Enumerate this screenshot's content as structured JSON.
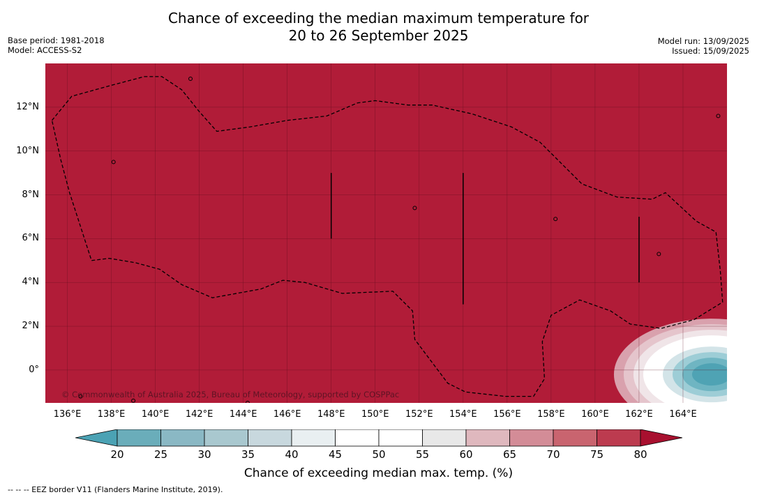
{
  "title": {
    "line1": "Chance of exceeding the median maximum temperature for",
    "line2": "20 to 26 September 2025"
  },
  "meta_left": [
    "Base period: 1981-2018",
    "Model: ACCESS-S2"
  ],
  "meta_right": [
    "Model run: 13/09/2025",
    "Issued: 15/09/2025"
  ],
  "map": {
    "background_color": "#b11c38",
    "lon_range": [
      135,
      166
    ],
    "lat_range": [
      -1.5,
      14
    ],
    "lat_ticks": [
      {
        "value": 12,
        "label": "12°N"
      },
      {
        "value": 10,
        "label": "10°N"
      },
      {
        "value": 8,
        "label": "8°N"
      },
      {
        "value": 6,
        "label": "6°N"
      },
      {
        "value": 4,
        "label": "4°N"
      },
      {
        "value": 2,
        "label": "2°N"
      },
      {
        "value": 0,
        "label": "0°"
      }
    ],
    "lon_ticks": [
      {
        "value": 136,
        "label": "136°E"
      },
      {
        "value": 138,
        "label": "138°E"
      },
      {
        "value": 140,
        "label": "140°E"
      },
      {
        "value": 142,
        "label": "142°E"
      },
      {
        "value": 144,
        "label": "144°E"
      },
      {
        "value": 146,
        "label": "146°E"
      },
      {
        "value": 148,
        "label": "148°E"
      },
      {
        "value": 150,
        "label": "150°E"
      },
      {
        "value": 152,
        "label": "152°E"
      },
      {
        "value": 154,
        "label": "154°E"
      },
      {
        "value": 156,
        "label": "156°E"
      },
      {
        "value": 158,
        "label": "158°E"
      },
      {
        "value": 160,
        "label": "160°E"
      },
      {
        "value": 162,
        "label": "162°E"
      },
      {
        "value": 164,
        "label": "164°E"
      }
    ],
    "grid": true,
    "eez_border": [
      [
        135.3,
        11.4
      ],
      [
        136.2,
        12.5
      ],
      [
        138,
        13
      ],
      [
        139.5,
        13.4
      ],
      [
        140.3,
        13.4
      ],
      [
        141.2,
        12.8
      ],
      [
        142,
        11.8
      ],
      [
        142.8,
        10.9
      ],
      [
        144.3,
        11.1
      ],
      [
        146,
        11.4
      ],
      [
        147.8,
        11.6
      ],
      [
        148.5,
        11.9
      ],
      [
        149.2,
        12.2
      ],
      [
        150,
        12.3
      ],
      [
        151.5,
        12.1
      ],
      [
        152.6,
        12.1
      ],
      [
        154.4,
        11.7
      ],
      [
        156.2,
        11.1
      ],
      [
        157.5,
        10.4
      ],
      [
        159.4,
        8.5
      ],
      [
        161,
        7.9
      ],
      [
        162.6,
        7.8
      ],
      [
        163.2,
        8.1
      ],
      [
        164.6,
        6.8
      ],
      [
        165.5,
        6.3
      ],
      [
        165.7,
        4.5
      ],
      [
        165.8,
        3.1
      ],
      [
        164.5,
        2.3
      ],
      [
        163,
        1.9
      ],
      [
        161.6,
        2.1
      ],
      [
        160.7,
        2.7
      ],
      [
        159.3,
        3.2
      ],
      [
        158,
        2.5
      ],
      [
        157.6,
        1.3
      ],
      [
        157.7,
        -0.4
      ],
      [
        157.2,
        -1.2
      ],
      [
        155.9,
        -1.2
      ],
      [
        154.1,
        -1
      ],
      [
        153.3,
        -0.6
      ],
      [
        151.8,
        1.4
      ],
      [
        151.7,
        2.7
      ],
      [
        150.8,
        3.6
      ],
      [
        148.5,
        3.5
      ],
      [
        146.8,
        4
      ],
      [
        145.8,
        4.1
      ],
      [
        144.8,
        3.7
      ],
      [
        142.6,
        3.3
      ],
      [
        141.2,
        3.9
      ],
      [
        140.2,
        4.6
      ],
      [
        139.1,
        4.9
      ],
      [
        137.9,
        5.1
      ],
      [
        137.1,
        5
      ],
      [
        136.1,
        8.1
      ],
      [
        135.7,
        9.6
      ],
      [
        135.3,
        11.4
      ]
    ],
    "meridian_lines": [
      {
        "lon": 148,
        "lat_from": 6,
        "lat_to": 9
      },
      {
        "lon": 154,
        "lat_from": 3,
        "lat_to": 9
      },
      {
        "lon": 162,
        "lat_from": 4,
        "lat_to": 7
      }
    ],
    "anomaly_blob": {
      "center": [
        165.3,
        -0.2
      ],
      "colors": [
        "#d9a1ad",
        "#e5c5cc",
        "#f0e5e8",
        "#ffffff",
        "#ffffff",
        "#d3e4e8",
        "#9dcdd6",
        "#6fb5c2",
        "#4fa3b4"
      ]
    },
    "islands": [
      [
        141.6,
        13.3
      ],
      [
        138.1,
        9.5
      ],
      [
        151.8,
        7.4
      ],
      [
        158.2,
        6.9
      ],
      [
        162.9,
        5.3
      ],
      [
        165.6,
        11.6
      ],
      [
        136.6,
        -1.2
      ],
      [
        139.0,
        -1.4
      ],
      [
        144.2,
        -1.5
      ]
    ]
  },
  "copyright": "© Commonwealth of Australia 2025, Bureau of Meteorology, supported by COSPPac",
  "colorbar": {
    "label": "Chance of exceeding median max. temp. (%)",
    "ticks": [
      "20",
      "25",
      "30",
      "35",
      "40",
      "45",
      "50",
      "55",
      "60",
      "65",
      "70",
      "75",
      "80"
    ],
    "colors": [
      "#6aadba",
      "#8ab8c4",
      "#a9c8cf",
      "#c8d8de",
      "#e9eff1",
      "#ffffff",
      "#ffffff",
      "#e8e8e8",
      "#dfb8be",
      "#d38c97",
      "#c9646f",
      "#bc3b4f"
    ],
    "under_color": "#4ba2b4",
    "over_color": "#a8102f"
  },
  "legend": "-- -- -- EEZ border V11 (Flanders Marine Institute, 2019)."
}
